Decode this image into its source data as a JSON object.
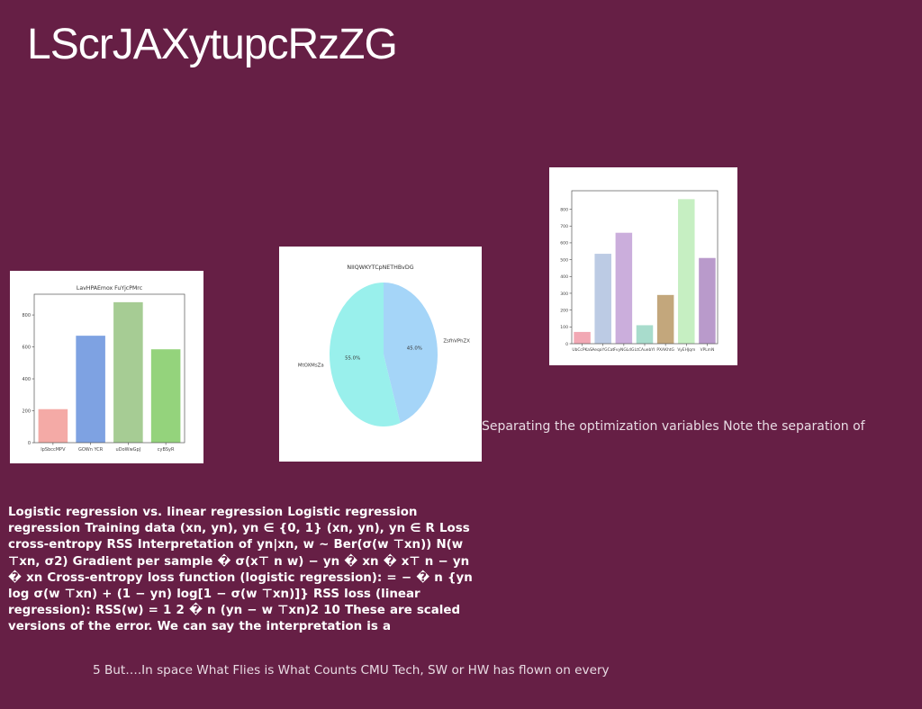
{
  "slide": {
    "title": "LScrJAXytupcRzZG",
    "caption": "Separating the optimization variables Note the separation of",
    "body": "Logistic regression vs. linear regression Logistic regression regression Training data (xn, yn), yn ∈ {0, 1} (xn, yn), yn ∈ R Loss cross-entropy RSS Interpretation of yn|xn, w ∼ Ber(σ(w ⊤xn)) N(w ⊤xn, σ2) Gradient per sample � σ(x⊤ n w) − yn � xn � x⊤ n − yn � xn Cross-entropy loss function (logistic regression): = − � n {yn log σ(w ⊤xn) + (1 − yn) log[1 − σ(w ⊤xn)]} RSS loss (linear regression): RSS(w) = 1 2 � n (yn − w ⊤xn)2 10 These are scaled versions of the error. We can say the interpretation is a",
    "footer": "5 But….In space What Flies is What Counts CMU Tech, SW or HW has flown on every"
  },
  "chart_data": [
    {
      "type": "bar",
      "title": "LavHPAEmox FuYjcPMrc",
      "categories": [
        "IpSbccMPV",
        "GOWn YCR",
        "uDoWwGpJ",
        "cyBSyR"
      ],
      "values": [
        210,
        670,
        880,
        585
      ],
      "colors": [
        "#f4aaa6",
        "#7ea2e2",
        "#a6cc94",
        "#94d37c"
      ],
      "ylim": [
        0,
        930
      ],
      "yticks": [
        0,
        200,
        400,
        600,
        800
      ],
      "grid": false
    },
    {
      "type": "pie",
      "title": "NIIQWKYTCpNETHBvDG",
      "labels": [
        "ZsfhVPhZX",
        "MtOXMsZa"
      ],
      "values": [
        45.0,
        55.0
      ],
      "value_labels": [
        "45.0%",
        "55.0%"
      ],
      "colors": [
        "#a5d5f8",
        "#99f0ec"
      ]
    },
    {
      "type": "bar",
      "title": "",
      "categories": [
        "UbCcPKaS",
        "AeqaYGCat",
        "FvyNGLdG",
        "LtCAuebYI",
        "PXAKhtG",
        "VyEHJqm",
        "VPLmN"
      ],
      "tick_labels_printed": "UbCcPKaSAeqaYGCatFvyNGLdGLtCAuebPXAKhtG VyEHJqm VPLmN",
      "values": [
        70,
        535,
        660,
        110,
        290,
        860,
        510
      ],
      "colors": [
        "#f2a8b4",
        "#bccbe4",
        "#cbaedc",
        "#a8dccc",
        "#c3a77c",
        "#c6efc2",
        "#b99acb"
      ],
      "ylim": [
        0,
        910
      ],
      "yticks": [
        0,
        100,
        200,
        300,
        400,
        500,
        600,
        700,
        800
      ],
      "grid": false
    }
  ]
}
